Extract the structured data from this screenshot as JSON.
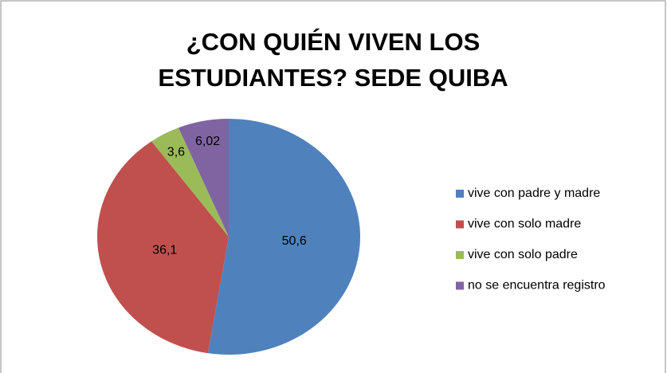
{
  "chart_data": {
    "type": "pie",
    "title": "¿CON QUIÉN VIVEN LOS ESTUDIANTES? SEDE QUIBA",
    "categories": [
      "vive con padre y madre",
      "vive con solo madre",
      "vive con solo padre",
      "no se encuentra registro"
    ],
    "values": [
      50.6,
      36.1,
      3.6,
      6.02
    ],
    "value_labels": [
      "50,6",
      "36,1",
      "3,6",
      "6,02"
    ],
    "colors": [
      "#4f81bd",
      "#c0504d",
      "#9bbb59",
      "#8064a2"
    ],
    "legend": "right"
  }
}
